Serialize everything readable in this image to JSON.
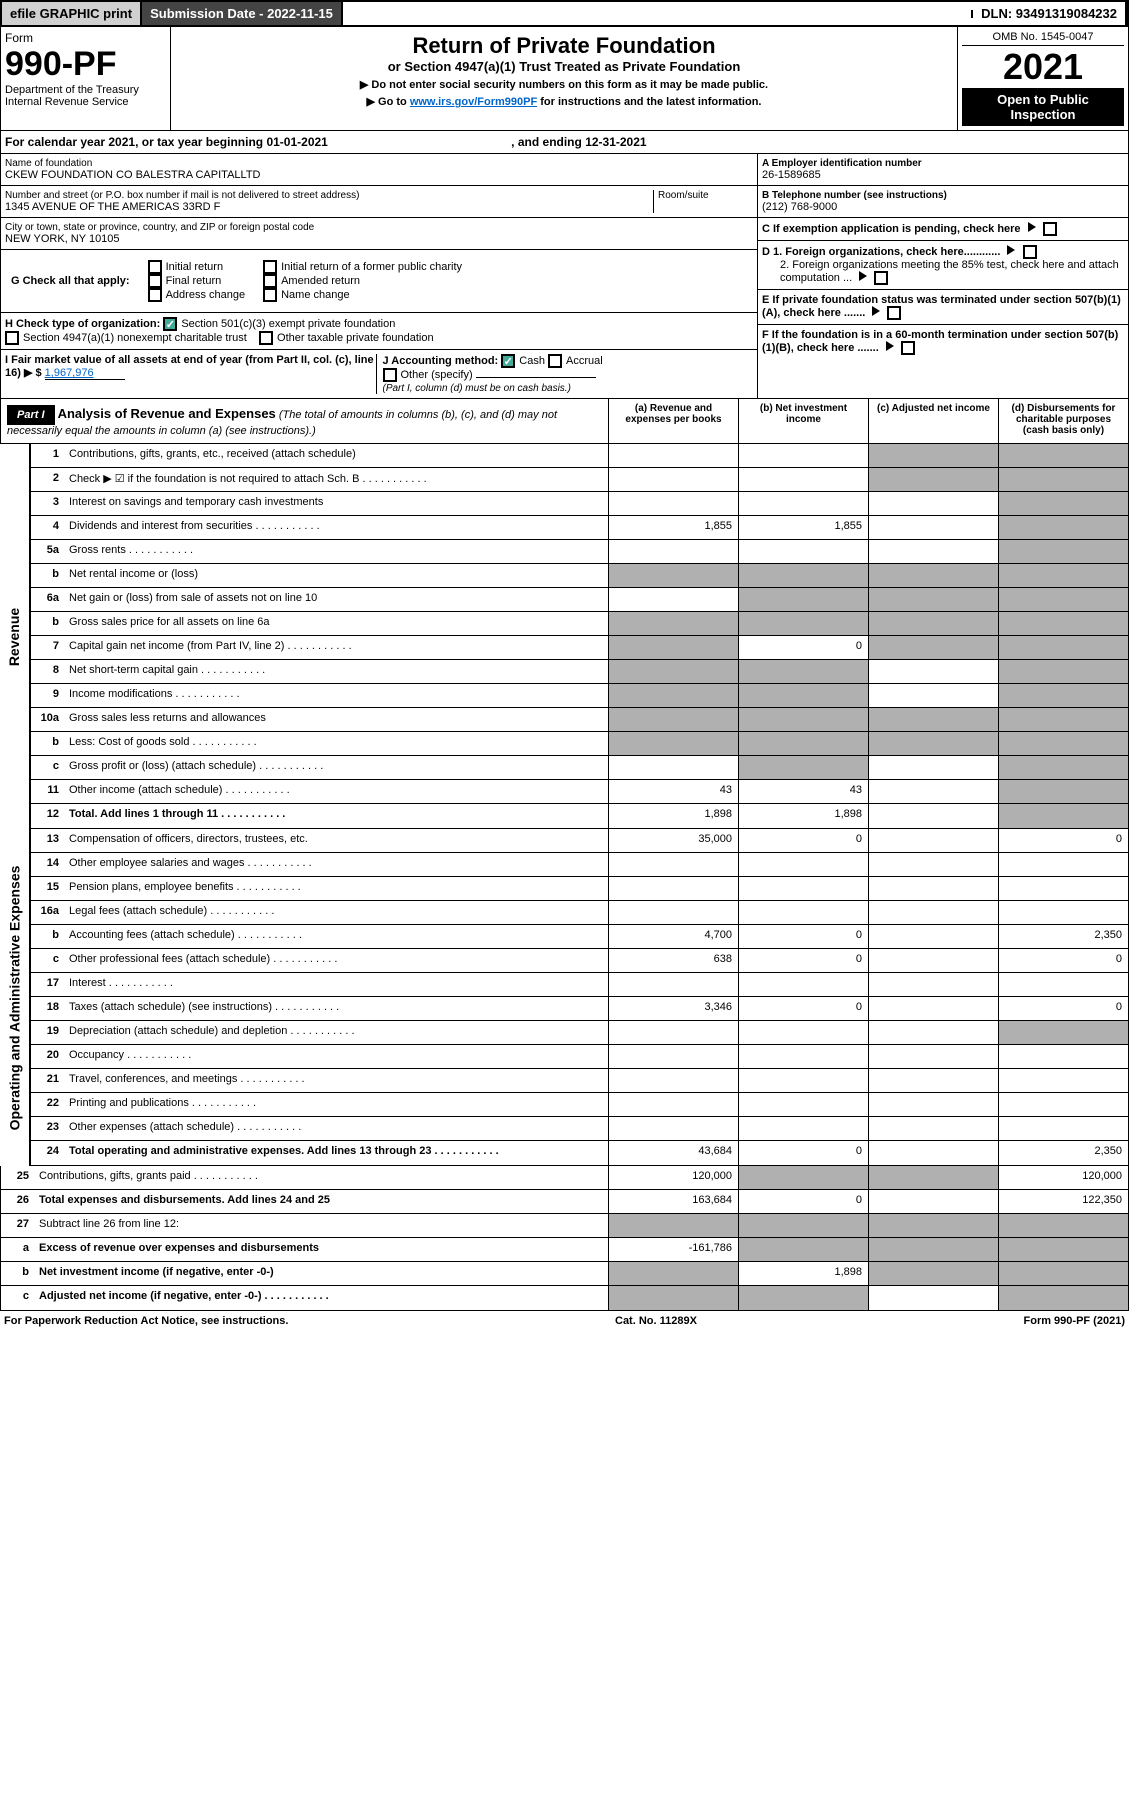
{
  "topbar": {
    "efile": "efile GRAPHIC print",
    "sub_label": "Submission Date - 2022-11-15",
    "dln": "DLN: 93491319084232"
  },
  "header": {
    "form_word": "Form",
    "form_no": "990-PF",
    "dept": "Department of the Treasury",
    "irs": "Internal Revenue Service",
    "title": "Return of Private Foundation",
    "subtitle": "or Section 4947(a)(1) Trust Treated as Private Foundation",
    "instr1": "▶ Do not enter social security numbers on this form as it may be made public.",
    "instr2_pre": "▶ Go to ",
    "instr2_link": "www.irs.gov/Form990PF",
    "instr2_post": " for instructions and the latest information.",
    "omb": "OMB No. 1545-0047",
    "year": "2021",
    "open": "Open to Public Inspection"
  },
  "cal": {
    "text_pre": "For calendar year 2021, or tax year beginning ",
    "begin": "01-01-2021",
    "mid": " , and ending ",
    "end": "12-31-2021"
  },
  "left": {
    "name_label": "Name of foundation",
    "name": "CKEW FOUNDATION CO BALESTRA CAPITALLTD",
    "addr_label": "Number and street (or P.O. box number if mail is not delivered to street address)",
    "room_label": "Room/suite",
    "addr": "1345 AVENUE OF THE AMERICAS 33RD F",
    "city_label": "City or town, state or province, country, and ZIP or foreign postal code",
    "city": "NEW YORK, NY  10105"
  },
  "right": {
    "a_label": "A Employer identification number",
    "a_val": "26-1589685",
    "b_label": "B Telephone number (see instructions)",
    "b_val": "(212) 768-9000",
    "c_label": "C If exemption application is pending, check here",
    "d1": "D 1. Foreign organizations, check here............",
    "d2": "2. Foreign organizations meeting the 85% test, check here and attach computation ...",
    "e": "E  If private foundation status was terminated under section 507(b)(1)(A), check here .......",
    "f": "F  If the foundation is in a 60-month termination under section 507(b)(1)(B), check here ......."
  },
  "g": {
    "label": "G Check all that apply:",
    "opts": [
      "Initial return",
      "Final return",
      "Address change",
      "Initial return of a former public charity",
      "Amended return",
      "Name change"
    ]
  },
  "h": {
    "label": "H Check type of organization:",
    "opt1": "Section 501(c)(3) exempt private foundation",
    "opt2": "Section 4947(a)(1) nonexempt charitable trust",
    "opt3": "Other taxable private foundation"
  },
  "i": {
    "label": "I Fair market value of all assets at end of year (from Part II, col. (c), line 16) ▶ $",
    "val": "1,967,976"
  },
  "j": {
    "label": "J Accounting method:",
    "cash": "Cash",
    "accrual": "Accrual",
    "other": "Other (specify)",
    "note": "(Part I, column (d) must be on cash basis.)"
  },
  "part1": {
    "label": "Part I",
    "title": "Analysis of Revenue and Expenses",
    "desc": "(The total of amounts in columns (b), (c), and (d) may not necessarily equal the amounts in column (a) (see instructions).)",
    "cols": [
      "(a)  Revenue and expenses per books",
      "(b)  Net investment income",
      "(c)  Adjusted net income",
      "(d)  Disbursements for charitable purposes (cash basis only)"
    ]
  },
  "sides": {
    "rev": "Revenue",
    "exp": "Operating and Administrative Expenses"
  },
  "rows": [
    {
      "n": "1",
      "d": "Contributions, gifts, grants, etc., received (attach schedule)",
      "a": "",
      "b": "",
      "c": "s",
      "dd": "s"
    },
    {
      "n": "2",
      "d": "Check ▶ ☑ if the foundation is not required to attach Sch. B",
      "dots": 1,
      "a": "",
      "b": "",
      "c": "s",
      "dd": "s"
    },
    {
      "n": "3",
      "d": "Interest on savings and temporary cash investments",
      "a": "",
      "b": "",
      "c": "",
      "dd": "s"
    },
    {
      "n": "4",
      "d": "Dividends and interest from securities",
      "dots": 1,
      "a": "1,855",
      "b": "1,855",
      "c": "",
      "dd": "s"
    },
    {
      "n": "5a",
      "d": "Gross rents",
      "dots": 1,
      "a": "",
      "b": "",
      "c": "",
      "dd": "s"
    },
    {
      "n": "b",
      "d": "Net rental income or (loss)",
      "a": "s",
      "b": "s",
      "c": "s",
      "dd": "s"
    },
    {
      "n": "6a",
      "d": "Net gain or (loss) from sale of assets not on line 10",
      "a": "",
      "b": "s",
      "c": "s",
      "dd": "s"
    },
    {
      "n": "b",
      "d": "Gross sales price for all assets on line 6a",
      "a": "s",
      "b": "s",
      "c": "s",
      "dd": "s"
    },
    {
      "n": "7",
      "d": "Capital gain net income (from Part IV, line 2)",
      "dots": 1,
      "a": "s",
      "b": "0",
      "c": "s",
      "dd": "s"
    },
    {
      "n": "8",
      "d": "Net short-term capital gain",
      "dots": 1,
      "a": "s",
      "b": "s",
      "c": "",
      "dd": "s"
    },
    {
      "n": "9",
      "d": "Income modifications",
      "dots": 1,
      "a": "s",
      "b": "s",
      "c": "",
      "dd": "s"
    },
    {
      "n": "10a",
      "d": "Gross sales less returns and allowances",
      "a": "s",
      "b": "s",
      "c": "s",
      "dd": "s"
    },
    {
      "n": "b",
      "d": "Less: Cost of goods sold",
      "dots": 1,
      "a": "s",
      "b": "s",
      "c": "s",
      "dd": "s"
    },
    {
      "n": "c",
      "d": "Gross profit or (loss) (attach schedule)",
      "dots": 1,
      "a": "",
      "b": "s",
      "c": "",
      "dd": "s"
    },
    {
      "n": "11",
      "d": "Other income (attach schedule)",
      "dots": 1,
      "a": "43",
      "b": "43",
      "c": "",
      "dd": "s"
    },
    {
      "n": "12",
      "d": "Total. Add lines 1 through 11",
      "dots": 1,
      "bold": 1,
      "a": "1,898",
      "b": "1,898",
      "c": "",
      "dd": "s"
    },
    {
      "n": "13",
      "d": "Compensation of officers, directors, trustees, etc.",
      "a": "35,000",
      "b": "0",
      "c": "",
      "dd": "0"
    },
    {
      "n": "14",
      "d": "Other employee salaries and wages",
      "dots": 1,
      "a": "",
      "b": "",
      "c": "",
      "dd": ""
    },
    {
      "n": "15",
      "d": "Pension plans, employee benefits",
      "dots": 1,
      "a": "",
      "b": "",
      "c": "",
      "dd": ""
    },
    {
      "n": "16a",
      "d": "Legal fees (attach schedule)",
      "dots": 1,
      "a": "",
      "b": "",
      "c": "",
      "dd": ""
    },
    {
      "n": "b",
      "d": "Accounting fees (attach schedule)",
      "dots": 1,
      "a": "4,700",
      "b": "0",
      "c": "",
      "dd": "2,350"
    },
    {
      "n": "c",
      "d": "Other professional fees (attach schedule)",
      "dots": 1,
      "a": "638",
      "b": "0",
      "c": "",
      "dd": "0"
    },
    {
      "n": "17",
      "d": "Interest",
      "dots": 1,
      "a": "",
      "b": "",
      "c": "",
      "dd": ""
    },
    {
      "n": "18",
      "d": "Taxes (attach schedule) (see instructions)",
      "dots": 1,
      "a": "3,346",
      "b": "0",
      "c": "",
      "dd": "0"
    },
    {
      "n": "19",
      "d": "Depreciation (attach schedule) and depletion",
      "dots": 1,
      "a": "",
      "b": "",
      "c": "",
      "dd": "s"
    },
    {
      "n": "20",
      "d": "Occupancy",
      "dots": 1,
      "a": "",
      "b": "",
      "c": "",
      "dd": ""
    },
    {
      "n": "21",
      "d": "Travel, conferences, and meetings",
      "dots": 1,
      "a": "",
      "b": "",
      "c": "",
      "dd": ""
    },
    {
      "n": "22",
      "d": "Printing and publications",
      "dots": 1,
      "a": "",
      "b": "",
      "c": "",
      "dd": ""
    },
    {
      "n": "23",
      "d": "Other expenses (attach schedule)",
      "dots": 1,
      "a": "",
      "b": "",
      "c": "",
      "dd": ""
    },
    {
      "n": "24",
      "d": "Total operating and administrative expenses. Add lines 13 through 23",
      "dots": 1,
      "bold": 1,
      "a": "43,684",
      "b": "0",
      "c": "",
      "dd": "2,350"
    },
    {
      "n": "25",
      "d": "Contributions, gifts, grants paid",
      "dots": 1,
      "a": "120,000",
      "b": "s",
      "c": "s",
      "dd": "120,000"
    },
    {
      "n": "26",
      "d": "Total expenses and disbursements. Add lines 24 and 25",
      "bold": 1,
      "a": "163,684",
      "b": "0",
      "c": "",
      "dd": "122,350"
    },
    {
      "n": "27",
      "d": "Subtract line 26 from line 12:",
      "a": "s",
      "b": "s",
      "c": "s",
      "dd": "s"
    },
    {
      "n": "a",
      "d": "Excess of revenue over expenses and disbursements",
      "bold": 1,
      "a": "-161,786",
      "b": "s",
      "c": "s",
      "dd": "s"
    },
    {
      "n": "b",
      "d": "Net investment income (if negative, enter -0-)",
      "bold": 1,
      "a": "s",
      "b": "1,898",
      "c": "s",
      "dd": "s"
    },
    {
      "n": "c",
      "d": "Adjusted net income (if negative, enter -0-)",
      "dots": 1,
      "bold": 1,
      "a": "s",
      "b": "s",
      "c": "",
      "dd": "s"
    }
  ],
  "footer": {
    "left": "For Paperwork Reduction Act Notice, see instructions.",
    "mid": "Cat. No. 11289X",
    "right": "Form 990-PF (2021)"
  }
}
